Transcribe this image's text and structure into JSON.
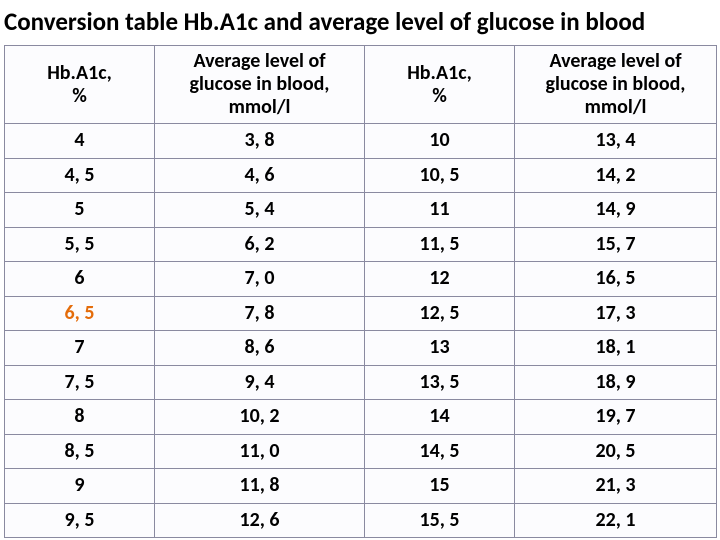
{
  "title": "Conversion table Hb.A1c and average level of glucose in blood",
  "table": {
    "headers": {
      "col1_l1": "Hb.A1c,",
      "col1_l2": "%",
      "col2_l1": "Average level of",
      "col2_l2": "glucose in blood,",
      "col2_l3": "mmol/l",
      "col3_l1": "Hb.A1c,",
      "col3_l2": "%",
      "col4_l1": "Average level of",
      "col4_l2": "glucose in blood,",
      "col4_l3": "mmol/l"
    },
    "rows": [
      {
        "c1": "4",
        "c2": "3, 8",
        "c3": "10",
        "c4": "13, 4",
        "hl": false
      },
      {
        "c1": "4, 5",
        "c2": "4, 6",
        "c3": "10, 5",
        "c4": "14, 2",
        "hl": false
      },
      {
        "c1": "5",
        "c2": "5, 4",
        "c3": "11",
        "c4": "14, 9",
        "hl": false
      },
      {
        "c1": "5, 5",
        "c2": "6, 2",
        "c3": "11, 5",
        "c4": "15, 7",
        "hl": false
      },
      {
        "c1": "6",
        "c2": "7, 0",
        "c3": "12",
        "c4": "16, 5",
        "hl": false
      },
      {
        "c1": "6, 5",
        "c2": "7, 8",
        "c3": "12, 5",
        "c4": "17, 3",
        "hl": true
      },
      {
        "c1": "7",
        "c2": "8, 6",
        "c3": "13",
        "c4": "18, 1",
        "hl": false
      },
      {
        "c1": "7, 5",
        "c2": "9, 4",
        "c3": "13, 5",
        "c4": "18, 9",
        "hl": false
      },
      {
        "c1": "8",
        "c2": "10, 2",
        "c3": "14",
        "c4": "19, 7",
        "hl": false
      },
      {
        "c1": "8, 5",
        "c2": "11, 0",
        "c3": "14, 5",
        "c4": "20, 5",
        "hl": false
      },
      {
        "c1": "9",
        "c2": "11, 8",
        "c3": "15",
        "c4": "21, 3",
        "hl": false
      },
      {
        "c1": "9, 5",
        "c2": "12, 6",
        "c3": "15, 5",
        "c4": "22, 1",
        "hl": false
      }
    ],
    "colors": {
      "border": "#8a8aa0",
      "cell_bg": "#fcfcfe",
      "text": "#000000",
      "highlight": "#e46c0a"
    },
    "font": {
      "title_size_pt": 19,
      "header_size_pt": 15,
      "cell_size_pt": 15,
      "weight": "bold",
      "family": "Calibri"
    }
  }
}
